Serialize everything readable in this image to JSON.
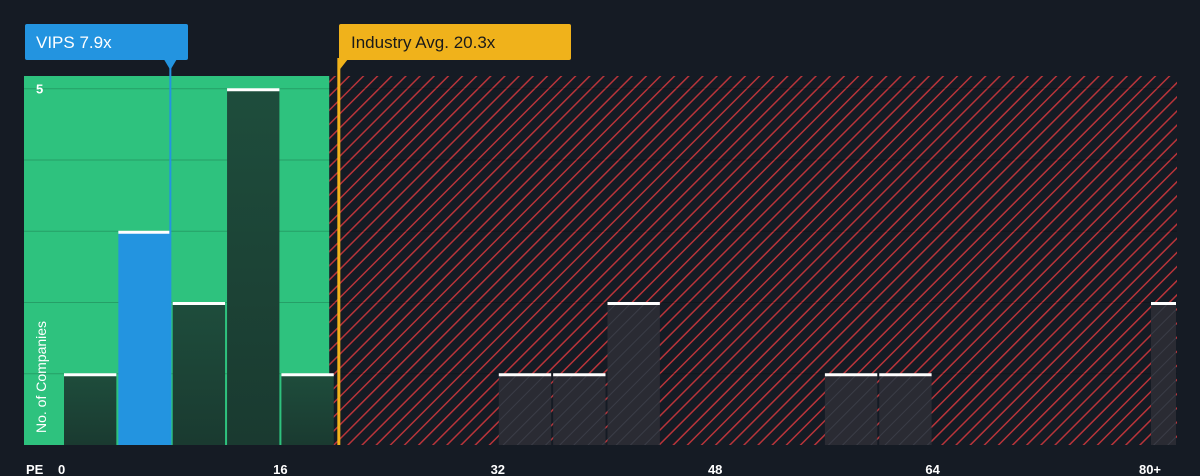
{
  "chart_data": {
    "type": "bar",
    "x_axis_label": "PE",
    "y_axis_label": "No. of Companies",
    "x_ticks": [
      "0",
      "16",
      "32",
      "48",
      "64",
      "80+"
    ],
    "x_tick_values": [
      0,
      16,
      32,
      48,
      64,
      80
    ],
    "y_tick_labels": [
      "5"
    ],
    "y_tick_values": [
      5
    ],
    "xlim": [
      0,
      80
    ],
    "ylim": [
      0,
      5.15
    ],
    "bin_width": 4,
    "bins": [
      {
        "start": 0,
        "count": 1
      },
      {
        "start": 4,
        "count": 3,
        "highlight": true
      },
      {
        "start": 8,
        "count": 2
      },
      {
        "start": 12,
        "count": 5
      },
      {
        "start": 16,
        "count": 1
      },
      {
        "start": 32,
        "count": 1
      },
      {
        "start": 36,
        "count": 1
      },
      {
        "start": 40,
        "count": 2
      },
      {
        "start": 56,
        "count": 1
      },
      {
        "start": 60,
        "count": 1
      },
      {
        "start": 80,
        "count": 2
      }
    ],
    "company": {
      "label": "VIPS 7.9x",
      "value": 7.9
    },
    "industry_avg": {
      "label": "Industry Avg. 20.3x",
      "value": 20.3
    },
    "fair_zone_end": 19.6,
    "colors": {
      "background": "#151b24",
      "fair_zone": "#2ec27e",
      "over_zone_hatch": "#c0392b",
      "bar": "#1f4a3a",
      "bar_over": "#2a2a33",
      "highlight_bar": "#2394e0",
      "company_marker": "#2394e0",
      "industry_marker": "#f0b21b"
    }
  }
}
